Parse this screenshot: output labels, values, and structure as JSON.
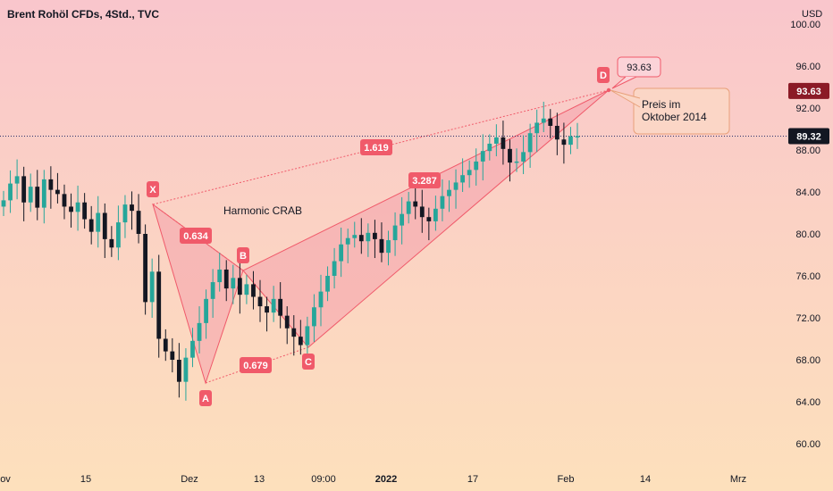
{
  "header": {
    "title": "Brent Rohöl CFDs, 4Std., TVC",
    "currency": "USD"
  },
  "colors": {
    "bull": "#26a69a",
    "bear": "#131722",
    "pattern": "#f05a6a",
    "fill": "#f4a0ab",
    "last_price": "#131722",
    "d_price": "#8b1a26"
  },
  "chart_data": {
    "type": "candlestick",
    "symbol": "Brent Rohöl CFDs",
    "timeframe": "4Std.",
    "source": "TVC",
    "y_axis": {
      "ticks": [
        "100.00",
        "96.00",
        "92.00",
        "88.00",
        "84.00",
        "80.00",
        "76.00",
        "72.00",
        "68.00",
        "64.00",
        "60.00"
      ],
      "ylim": [
        58.5,
        101.0
      ]
    },
    "x_axis": {
      "labels": [
        "ov",
        "15",
        "Dez",
        "13",
        "09:00",
        "2022",
        "17",
        "Feb",
        "14",
        "Mrz"
      ]
    },
    "price_series": [
      83.2,
      84.8,
      85.5,
      83.0,
      84.5,
      82.5,
      85.2,
      84.2,
      83.8,
      82.6,
      82.1,
      83.0,
      81.4,
      80.2,
      82.0,
      79.5,
      78.7,
      81.1,
      82.8,
      82.2,
      80.0,
      73.5,
      76.4,
      70.0,
      68.8,
      68.0,
      65.9,
      68.2,
      69.8,
      71.5,
      73.8,
      75.4,
      76.6,
      74.8,
      75.8,
      74.2,
      75.2,
      74.0,
      73.1,
      72.5,
      73.8,
      72.2,
      71.0,
      70.2,
      69.4,
      71.2,
      73.0,
      74.5,
      76.0,
      77.4,
      79.0,
      79.6,
      79.9,
      79.3,
      80.1,
      79.5,
      78.2,
      79.4,
      80.8,
      81.9,
      83.1,
      82.6,
      81.6,
      81.2,
      82.4,
      83.6,
      84.2,
      84.9,
      85.6,
      86.1,
      86.9,
      87.9,
      88.6,
      89.2,
      88.1,
      86.8,
      86.9,
      87.8,
      89.6,
      90.6,
      91.0,
      90.3,
      89.0,
      88.5,
      89.3,
      89.32
    ],
    "last_price": "89.32",
    "pattern": {
      "name": "Harmonic CRAB",
      "points": [
        {
          "label": "X",
          "x": "25 Nov",
          "price": 82.9
        },
        {
          "label": "A",
          "x": "02 Dez",
          "price": 65.9
        },
        {
          "label": "B",
          "x": "09 Dez",
          "price": 76.6
        },
        {
          "label": "C",
          "x": "20 Dez",
          "price": 69.4
        },
        {
          "label": "D",
          "x": "06 Feb",
          "price": 93.63
        }
      ],
      "ratios": [
        {
          "legs": "XA-B",
          "value": "0.634"
        },
        {
          "legs": "XA-D",
          "value": "1.619"
        },
        {
          "legs": "BC-D",
          "value": "3.287"
        },
        {
          "legs": "AB-C",
          "value": "0.679"
        }
      ],
      "d_price_label": "93.63"
    },
    "annotation": "Preis im\nOktober 2014"
  }
}
